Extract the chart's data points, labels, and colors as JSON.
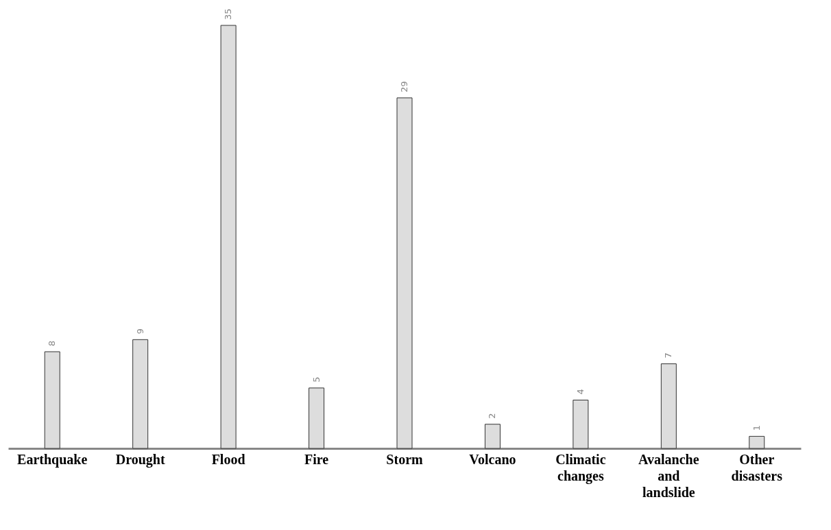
{
  "chart_data": {
    "type": "bar",
    "categories": [
      "Earthquake",
      "Drought",
      "Flood",
      "Fire",
      "Storm",
      "Volcano",
      "Climatic changes",
      "Avalanche and landslide",
      "Other disasters"
    ],
    "values": [
      8,
      9,
      35,
      5,
      29,
      2,
      4,
      7,
      1
    ],
    "color": "#dddddd",
    "data_labels": true
  }
}
